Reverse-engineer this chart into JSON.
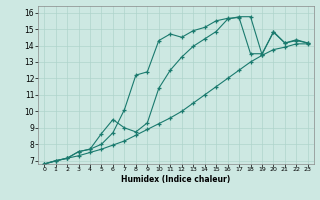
{
  "xlabel": "Humidex (Indice chaleur)",
  "xlim": [
    -0.5,
    23.5
  ],
  "ylim": [
    6.8,
    16.4
  ],
  "xticks": [
    0,
    1,
    2,
    3,
    4,
    5,
    6,
    7,
    8,
    9,
    10,
    11,
    12,
    13,
    14,
    15,
    16,
    17,
    18,
    19,
    20,
    21,
    22,
    23
  ],
  "yticks": [
    7,
    8,
    9,
    10,
    11,
    12,
    13,
    14,
    15,
    16
  ],
  "bg_color": "#cde8e2",
  "grid_color": "#afd4cc",
  "line_color": "#1a7a6e",
  "line1_x": [
    0,
    1,
    2,
    3,
    4,
    5,
    6,
    7,
    8,
    9,
    10,
    11,
    12,
    13,
    14,
    15,
    16,
    17,
    18,
    19,
    20,
    21,
    22,
    23
  ],
  "line1_y": [
    6.8,
    7.0,
    7.15,
    7.3,
    7.5,
    7.7,
    7.95,
    8.2,
    8.55,
    8.9,
    9.25,
    9.6,
    10.0,
    10.5,
    11.0,
    11.5,
    12.0,
    12.5,
    13.0,
    13.4,
    13.75,
    13.9,
    14.1,
    14.1
  ],
  "line2_x": [
    0,
    1,
    2,
    3,
    4,
    5,
    6,
    7,
    8,
    9,
    10,
    11,
    12,
    13,
    14,
    15,
    16,
    17,
    18,
    19,
    20,
    21,
    22,
    23
  ],
  "line2_y": [
    6.8,
    7.0,
    7.15,
    7.55,
    7.7,
    8.0,
    8.7,
    10.1,
    12.2,
    12.4,
    14.3,
    14.7,
    14.5,
    14.9,
    15.1,
    15.5,
    15.65,
    15.7,
    13.5,
    13.5,
    14.8,
    14.15,
    14.3,
    14.15
  ],
  "line3_x": [
    0,
    2,
    3,
    4,
    5,
    6,
    7,
    8,
    9,
    10,
    11,
    12,
    13,
    14,
    15,
    16,
    17,
    18,
    19,
    20,
    21,
    22,
    23
  ],
  "line3_y": [
    6.8,
    7.15,
    7.55,
    7.7,
    8.65,
    9.5,
    9.0,
    8.75,
    9.3,
    11.4,
    12.5,
    13.3,
    13.95,
    14.4,
    14.85,
    15.6,
    15.75,
    15.75,
    13.45,
    14.85,
    14.15,
    14.35,
    14.15
  ]
}
